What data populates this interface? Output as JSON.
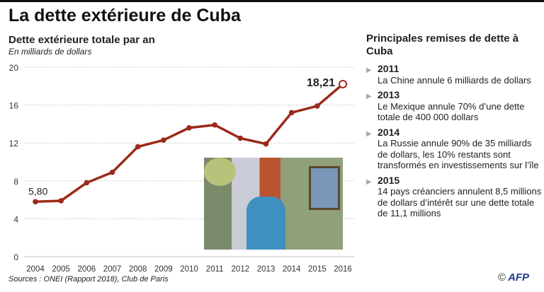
{
  "title": "La dette extérieure de Cuba",
  "chart_data": {
    "type": "line",
    "title": "Dette extérieure totale par an",
    "subtitle": "En milliards de dollars",
    "xlabel": "",
    "ylabel": "",
    "categories": [
      "2004",
      "2005",
      "2006",
      "2007",
      "2008",
      "2009",
      "2010",
      "2011",
      "2012",
      "2013",
      "2014",
      "2015",
      "2016"
    ],
    "values": [
      5.8,
      5.9,
      7.8,
      8.9,
      11.6,
      12.3,
      13.6,
      13.9,
      12.5,
      11.9,
      15.2,
      15.9,
      18.21
    ],
    "yticks": [
      "0",
      "4",
      "8",
      "12",
      "16",
      "20"
    ],
    "ylim": [
      0,
      20
    ],
    "grid": true,
    "data_labels": {
      "first": "5,80",
      "last": "18,21"
    },
    "line_color": "#9b2a1a"
  },
  "right": {
    "title": "Principales remises de dette à Cuba",
    "items": [
      {
        "year": "2011",
        "text": "La Chine annule 6 milliards de dollars"
      },
      {
        "year": "2013",
        "text": "Le Mexique annule 70% d’une dette totale de 400 000 dollars"
      },
      {
        "year": "2014",
        "text": "La Russie annule 90% de 35 milliards de dollars, les 10% restants sont transformés en investissements sur l’île"
      },
      {
        "year": "2015",
        "text": "14 pays créanciers annulent 8,5 millions de dollars d’intérêt sur une dette totale de 11,1 millions"
      }
    ]
  },
  "sources": "Sources : ONEI (Rapport 2018), Club de Paris",
  "credit": {
    "copyright": "©",
    "logo": "AFP"
  }
}
